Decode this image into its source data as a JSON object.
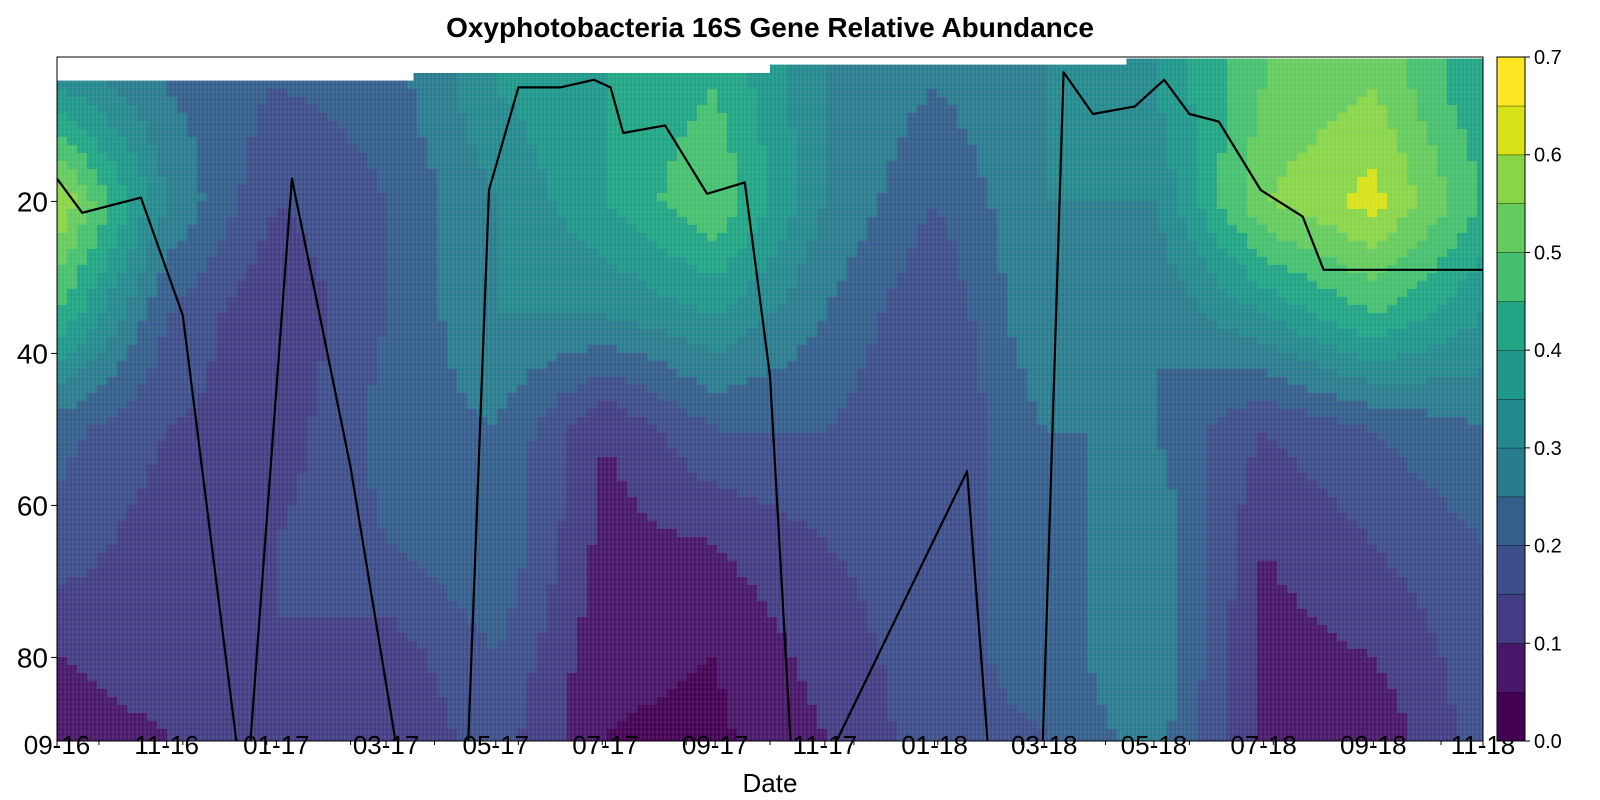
{
  "chart_data": {
    "type": "heatmap",
    "title": "Oxyphotobacteria 16S Gene Relative Abundance",
    "xlabel": "Date",
    "ylabel": "",
    "x_tick_labels": [
      "09-16",
      "11-16",
      "01-17",
      "03-17",
      "05-17",
      "07-17",
      "09-17",
      "11-17",
      "01-18",
      "03-18",
      "05-18",
      "07-18",
      "09-18",
      "11-18"
    ],
    "y_ticks": [
      20,
      40,
      60,
      80
    ],
    "ylim": [
      91,
      1
    ],
    "colorbar": {
      "ticks": [
        0.0,
        0.1,
        0.2,
        0.3,
        0.4,
        0.5,
        0.6,
        0.7
      ],
      "tick_labels": [
        "0.0",
        "0.1",
        "0.2",
        "0.3",
        "0.4",
        "0.5",
        "0.6",
        "0.7"
      ],
      "levels": [
        0.0,
        0.05,
        0.1,
        0.15,
        0.2,
        0.25,
        0.3,
        0.35,
        0.4,
        0.45,
        0.5,
        0.55,
        0.6,
        0.65,
        0.7
      ],
      "colormap": "viridis"
    },
    "colormap_colors": [
      "#440154",
      "#481769",
      "#472a7a",
      "#433d84",
      "#3d4e8a",
      "#355e8d",
      "#2e6d8e",
      "#297b8e",
      "#23898e",
      "#1f978b",
      "#21a585",
      "#2eb37c",
      "#46c06f",
      "#65cb5e",
      "#89d548",
      "#b0dd2f",
      "#d8e219",
      "#fde725"
    ],
    "abundance_columns_x_month": [
      0,
      2,
      4,
      6,
      8,
      10,
      12,
      14,
      16,
      18,
      20,
      22,
      24,
      26
    ],
    "abundance_depths": [
      5,
      20,
      35,
      50,
      65,
      80,
      90
    ],
    "abundance_grid_approx": [
      [
        0.35,
        0.25,
        0.2,
        0.22,
        0.35,
        0.4,
        0.45,
        0.3,
        0.25,
        0.3,
        0.35,
        0.5,
        0.55,
        0.4
      ],
      [
        0.6,
        0.3,
        0.15,
        0.2,
        0.3,
        0.4,
        0.5,
        0.3,
        0.2,
        0.3,
        0.3,
        0.55,
        0.62,
        0.45
      ],
      [
        0.45,
        0.2,
        0.1,
        0.2,
        0.3,
        0.3,
        0.35,
        0.25,
        0.15,
        0.3,
        0.25,
        0.35,
        0.45,
        0.35
      ],
      [
        0.22,
        0.15,
        0.12,
        0.22,
        0.25,
        0.1,
        0.2,
        0.2,
        0.15,
        0.25,
        0.25,
        0.15,
        0.2,
        0.25
      ],
      [
        0.18,
        0.12,
        0.15,
        0.2,
        0.25,
        0.08,
        0.1,
        0.15,
        0.18,
        0.22,
        0.3,
        0.1,
        0.15,
        0.2
      ],
      [
        0.1,
        0.12,
        0.15,
        0.12,
        0.2,
        0.06,
        0.05,
        0.12,
        0.18,
        0.22,
        0.3,
        0.08,
        0.1,
        0.18
      ],
      [
        0.08,
        0.1,
        0.15,
        0.1,
        0.18,
        0.05,
        0.04,
        0.1,
        0.18,
        0.2,
        0.28,
        0.08,
        0.06,
        0.18
      ]
    ],
    "series": [
      {
        "line_color": "#000000",
        "x_month": [
          0,
          0.6,
          2,
          3,
          4.3,
          4.6,
          5.6,
          7,
          8.1,
          9.8,
          10.3,
          11,
          12,
          12.8,
          13.2,
          13.5,
          14.5,
          15.5,
          16.4,
          17,
          17.5,
          18.5,
          21.7,
          22.2,
          23.5,
          24,
          24.7,
          25.7,
          26.4,
          27,
          27.7,
          28.7,
          29.7,
          30.2,
          31,
          32,
          33,
          33.5,
          34
        ],
        "y_depth": [
          17,
          21.5,
          19.5,
          35,
          92,
          92,
          17,
          55,
          92,
          92,
          18.5,
          5,
          5,
          4,
          5,
          11,
          10,
          19,
          17.5,
          43,
          92,
          92,
          55.5,
          92,
          92,
          3,
          8.5,
          7.5,
          4,
          8.5,
          9.5,
          18.5,
          22,
          29,
          29,
          29,
          29,
          29,
          29
        ]
      }
    ]
  }
}
